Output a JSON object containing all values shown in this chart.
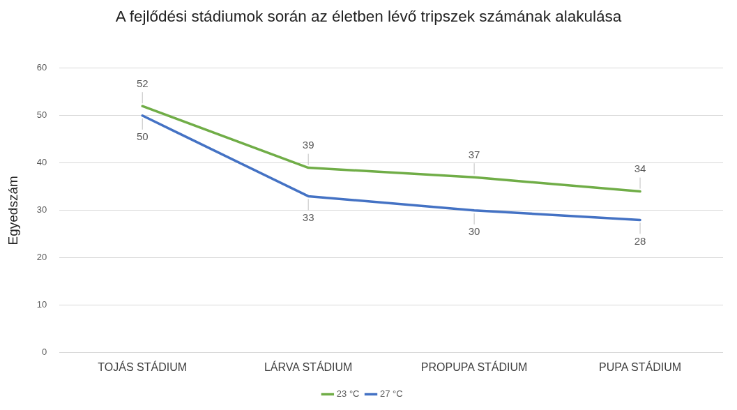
{
  "chart_data": {
    "type": "line",
    "title": "A fejlődési stádiumok során az életben lévő tripszek számának alakulása",
    "ylabel": "Egyedszám",
    "categories": [
      "TOJÁS STÁDIUM",
      "LÁRVA STÁDIUM",
      "PROPUPA STÁDIUM",
      "PUPA STÁDIUM"
    ],
    "series": [
      {
        "name": "23 °C",
        "color": "#70ad47",
        "values": [
          52,
          39,
          37,
          34
        ]
      },
      {
        "name": "27 °C",
        "color": "#4472c4",
        "values": [
          50,
          33,
          30,
          28
        ]
      }
    ],
    "ylim": [
      0,
      60
    ],
    "yticks": [
      0,
      10,
      20,
      30,
      40,
      50,
      60
    ],
    "grid": "y",
    "legend": "bottom",
    "marker": "none",
    "line_style": "solid",
    "data_labels": true
  }
}
